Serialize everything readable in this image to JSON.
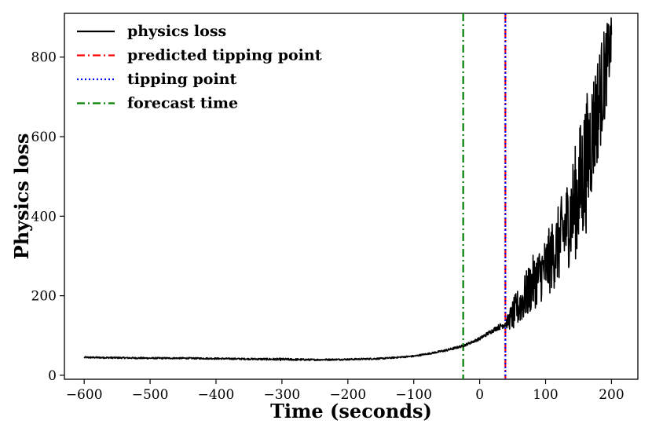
{
  "chart_data": {
    "type": "line",
    "title": "",
    "xlabel": "Time (seconds)",
    "ylabel": "Physics loss",
    "xlim": [
      -630,
      240
    ],
    "ylim": [
      -10,
      910
    ],
    "x_ticks": [
      -600,
      -500,
      -400,
      -300,
      -200,
      -100,
      0,
      100,
      200
    ],
    "x_tick_labels": [
      "−600",
      "−500",
      "−400",
      "−300",
      "−200",
      "−100",
      "0",
      "100",
      "200"
    ],
    "y_ticks": [
      0,
      200,
      400,
      600,
      800
    ],
    "y_tick_labels": [
      "0",
      "200",
      "400",
      "600",
      "800"
    ],
    "grid": false,
    "legend_position": "top-left",
    "series": [
      {
        "name": "physics loss",
        "style": "solid",
        "color": "#000000",
        "x": [
          -600,
          -550,
          -500,
          -450,
          -400,
          -350,
          -300,
          -250,
          -200,
          -150,
          -100,
          -75,
          -50,
          -25,
          0,
          25,
          40,
          50,
          60,
          70,
          80,
          90,
          100,
          110,
          120,
          130,
          140,
          150,
          160,
          170,
          180,
          190,
          200
        ],
        "y": [
          45,
          44,
          43,
          43,
          42,
          41,
          40,
          39,
          40,
          42,
          48,
          55,
          63,
          74,
          92,
          118,
          130,
          150,
          175,
          200,
          230,
          250,
          270,
          300,
          330,
          370,
          410,
          460,
          520,
          600,
          680,
          760,
          840
        ],
        "noise_amplitude": [
          2,
          2,
          2,
          2,
          2,
          2,
          3,
          2,
          2,
          2,
          2,
          2,
          3,
          3,
          4,
          6,
          10,
          40,
          50,
          60,
          70,
          70,
          80,
          90,
          100,
          110,
          130,
          160,
          180,
          150,
          140,
          120,
          60
        ]
      },
      {
        "name": "predicted tipping point",
        "style": "dashdot",
        "color": "#ff0000",
        "vline_x": 39
      },
      {
        "name": "tipping point",
        "style": "dotted",
        "color": "#0000ff",
        "vline_x": 39
      },
      {
        "name": "forecast time",
        "style": "dashdot",
        "color": "#008000",
        "vline_x": -25
      }
    ]
  }
}
